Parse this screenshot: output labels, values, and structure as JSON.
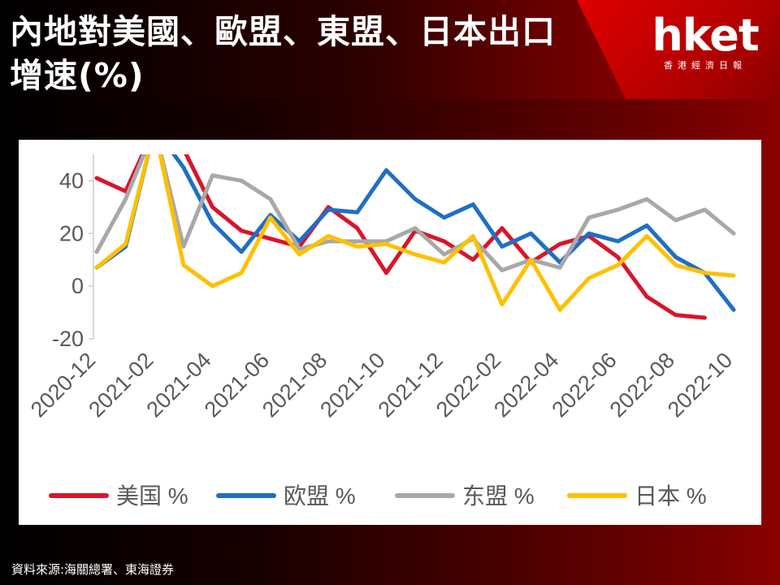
{
  "header": {
    "title": "內地對美國、歐盟、東盟、日本出口增速(%)",
    "logo": "hket",
    "logo_sub": "香港經濟日報"
  },
  "footer": {
    "source": "資料來源:海關總署、東海證券"
  },
  "colors": {
    "美国": "#d9152a",
    "欧盟": "#1f6fc5",
    "东盟": "#a8a8a8",
    "日本": "#ffc000"
  },
  "chart_data": {
    "type": "line",
    "title": "",
    "xlabel": "",
    "ylabel": "",
    "ylim": [
      -20,
      50
    ],
    "yticks": [
      "40",
      "20",
      "0",
      "-20"
    ],
    "x": [
      "2020-12",
      "2021-01",
      "2021-02",
      "2021-03",
      "2021-04",
      "2021-05",
      "2021-06",
      "2021-07",
      "2021-08",
      "2021-09",
      "2021-10",
      "2021-11",
      "2021-12",
      "2022-01",
      "2022-02",
      "2022-03",
      "2022-04",
      "2022-05",
      "2022-06",
      "2022-07",
      "2022-08",
      "2022-09",
      "2022-10"
    ],
    "xticks": [
      "2020-12",
      "2021-02",
      "2021-04",
      "2021-06",
      "2021-08",
      "2021-10",
      "2021-12",
      "2022-02",
      "2022-04",
      "2022-06",
      "2022-08",
      "2022-10"
    ],
    "series": [
      {
        "name": "美国 %",
        "color": "#d9152a",
        "values": [
          41,
          36,
          60,
          52,
          30,
          21,
          18,
          15,
          30,
          22,
          5,
          21,
          17,
          10,
          22,
          9,
          16,
          19,
          11,
          -4,
          -11,
          -12,
          null
        ]
      },
      {
        "name": "欧盟 %",
        "color": "#1f6fc5",
        "values": [
          7,
          15,
          60,
          45,
          24,
          13,
          27,
          17,
          29,
          28,
          44,
          33,
          26,
          31,
          15,
          20,
          9,
          20,
          17,
          23,
          11,
          5,
          -9
        ]
      },
      {
        "name": "东盟 %",
        "color": "#a8a8a8",
        "values": [
          13,
          33,
          60,
          15,
          42,
          40,
          33,
          14,
          17,
          17,
          17,
          22,
          12,
          18,
          6,
          10,
          7,
          26,
          29,
          33,
          25,
          29,
          20
        ]
      },
      {
        "name": "日本 %",
        "color": "#ffc000",
        "values": [
          7,
          16,
          60,
          8,
          0,
          5,
          26,
          12,
          19,
          15,
          16,
          12,
          9,
          19,
          -7,
          10,
          -9,
          3,
          8,
          19,
          8,
          5,
          4
        ]
      }
    ],
    "legend": "bottom",
    "grid": false
  }
}
